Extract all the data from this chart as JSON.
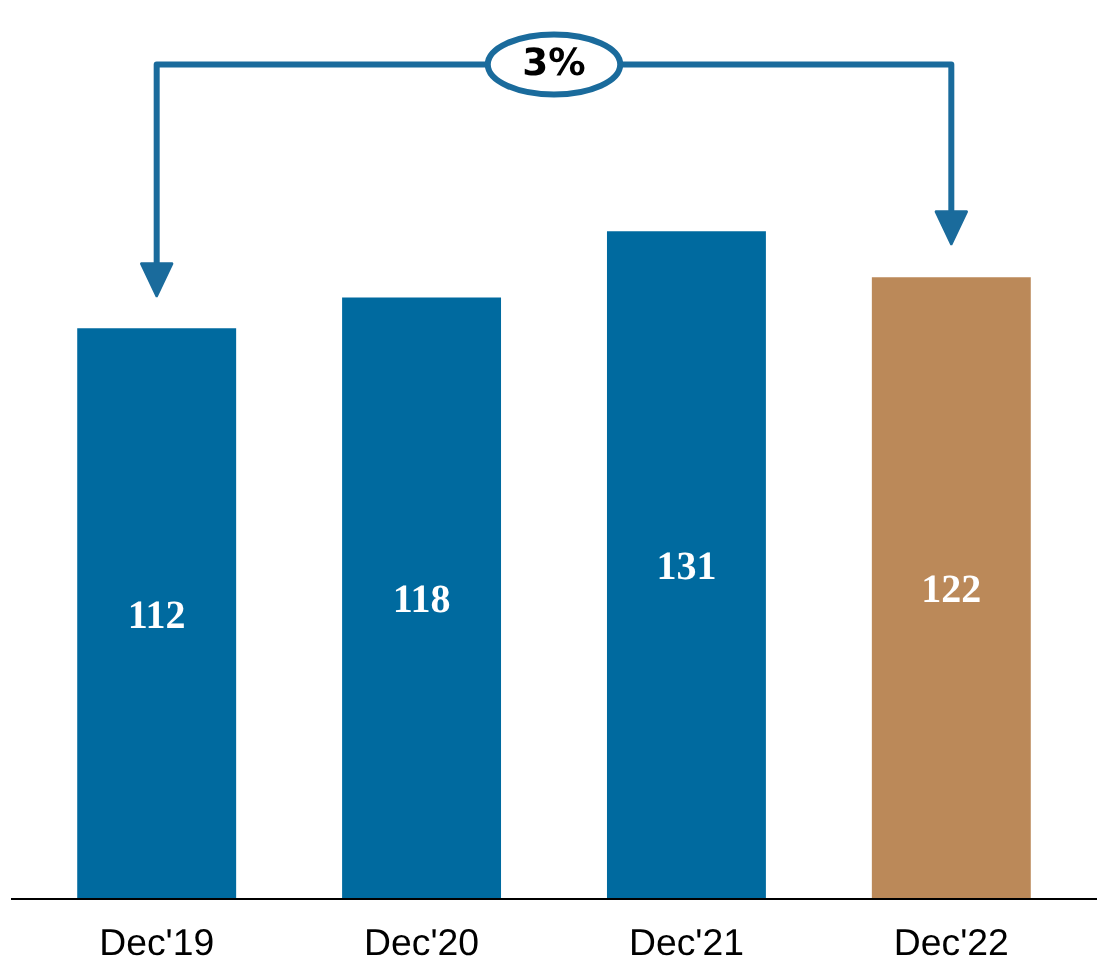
{
  "chart_data": {
    "type": "bar",
    "categories": [
      "Dec'19",
      "Dec'20",
      "Dec'21",
      "Dec'22"
    ],
    "values": [
      112,
      118,
      131,
      122
    ],
    "colors": [
      "#006a9f",
      "#006a9f",
      "#006a9f",
      "#bb8959"
    ],
    "data_labels": true,
    "grid": false,
    "annotations": [
      "3%"
    ]
  }
}
